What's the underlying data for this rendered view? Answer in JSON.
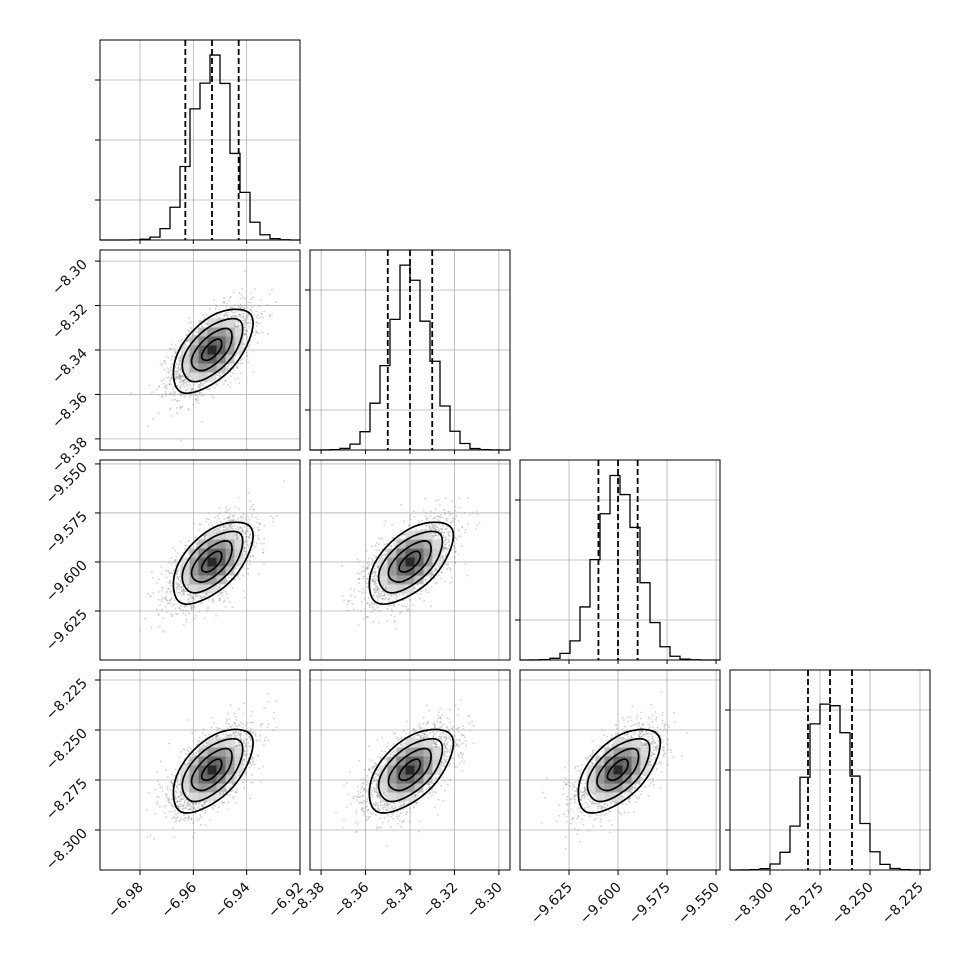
{
  "chart_data": {
    "type": "corner",
    "title": "",
    "grid": true,
    "parameters": [
      {
        "index": 0,
        "range": [
          -6.995,
          -6.92
        ],
        "ticks": [
          -6.98,
          -6.96,
          -6.94,
          -6.92
        ],
        "tick_labels": [
          "−6.98",
          "−6.96",
          "−6.94",
          "−6.92"
        ],
        "median": -6.953,
        "quantiles": [
          -6.963,
          -6.953,
          -6.943
        ],
        "sigma": 0.0075
      },
      {
        "index": 1,
        "range": [
          -8.385,
          -8.295
        ],
        "ticks": [
          -8.38,
          -8.36,
          -8.34,
          -8.32,
          -8.3
        ],
        "tick_labels": [
          "−8.38",
          "−8.36",
          "−8.34",
          "−8.32",
          "−8.30"
        ],
        "median": -8.34,
        "quantiles": [
          -8.35,
          -8.34,
          -8.33
        ],
        "sigma": 0.0095
      },
      {
        "index": 2,
        "range": [
          -9.65,
          -9.548
        ],
        "ticks": [
          -9.625,
          -9.6,
          -9.575,
          -9.55
        ],
        "tick_labels": [
          "−9.625",
          "−9.600",
          "−9.575",
          "−9.550"
        ],
        "median": -9.6,
        "quantiles": [
          -9.61,
          -9.6,
          -9.59
        ],
        "sigma": 0.0105
      },
      {
        "index": 3,
        "range": [
          -8.32,
          -8.22
        ],
        "ticks": [
          -8.3,
          -8.275,
          -8.25,
          -8.225
        ],
        "tick_labels": [
          "−8.300",
          "−8.275",
          "−8.250",
          "−8.225"
        ],
        "median": -8.27,
        "quantiles": [
          -8.281,
          -8.27,
          -8.259
        ],
        "sigma": 0.0105
      }
    ],
    "y_tick_labels": {
      "1": {
        "ticks": [
          -8.38,
          -8.36,
          -8.34,
          -8.32,
          -8.3
        ],
        "labels": [
          "−8.38",
          "−8.36",
          "−8.34",
          "−8.32",
          "−8.30"
        ]
      },
      "2": {
        "ticks": [
          -9.625,
          -9.6,
          -9.575,
          -9.55
        ],
        "labels": [
          "−9.625",
          "−9.600",
          "−9.575",
          "−9.550"
        ]
      },
      "3": {
        "ticks": [
          -8.3,
          -8.275,
          -8.25,
          -8.225
        ],
        "labels": [
          "−8.300",
          "−8.275",
          "−8.250",
          "−8.225"
        ]
      }
    },
    "correlation": 0.6,
    "contour_levels_sigma": [
      0.5,
      1.0,
      1.5,
      2.0
    ],
    "colors": {
      "line": "#000000",
      "points": "#9a9a9a",
      "grid": "#b0b0b0"
    }
  }
}
